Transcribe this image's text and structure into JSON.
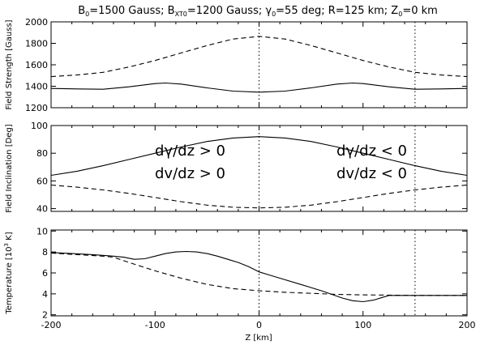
{
  "chart_data": [
    {
      "type": "line",
      "title": "",
      "xlabel": "",
      "ylabel": "Field Strength [Gauss]",
      "xlim": [
        -200,
        200
      ],
      "ylim": [
        1200,
        2000
      ],
      "yticks": [
        1200,
        1400,
        1600,
        1800,
        2000
      ],
      "grid": false,
      "reference_x": [
        0,
        150
      ],
      "series": [
        {
          "style": "solid",
          "x": [
            -200,
            -175,
            -150,
            -125,
            -100,
            -90,
            -75,
            -50,
            -25,
            0,
            25,
            50,
            75,
            90,
            100,
            125,
            150,
            175,
            200
          ],
          "y": [
            1380,
            1375,
            1372,
            1395,
            1425,
            1430,
            1420,
            1385,
            1355,
            1345,
            1355,
            1385,
            1420,
            1430,
            1425,
            1395,
            1372,
            1375,
            1380
          ]
        },
        {
          "style": "dashed",
          "x": [
            -200,
            -175,
            -150,
            -125,
            -100,
            -75,
            -50,
            -25,
            0,
            25,
            50,
            75,
            100,
            125,
            150,
            175,
            200
          ],
          "y": [
            1490,
            1505,
            1530,
            1580,
            1640,
            1710,
            1780,
            1840,
            1865,
            1840,
            1780,
            1710,
            1640,
            1580,
            1530,
            1505,
            1490
          ]
        }
      ]
    },
    {
      "type": "line",
      "title": "",
      "xlabel": "",
      "ylabel": "Field Inclination [Deg]",
      "xlim": [
        -200,
        200
      ],
      "ylim": [
        38,
        100
      ],
      "yticks": [
        40,
        60,
        80,
        100
      ],
      "grid": false,
      "reference_x": [
        0,
        150
      ],
      "series": [
        {
          "style": "solid",
          "x": [
            -200,
            -175,
            -150,
            -125,
            -100,
            -75,
            -50,
            -25,
            0,
            25,
            50,
            75,
            100,
            125,
            150,
            175,
            200
          ],
          "y": [
            64,
            67,
            71,
            75.5,
            80,
            84.5,
            88.5,
            91,
            92,
            91,
            88.5,
            84.5,
            80,
            75.5,
            71,
            67,
            64
          ]
        },
        {
          "style": "dashed",
          "x": [
            -200,
            -175,
            -150,
            -125,
            -100,
            -75,
            -50,
            -25,
            0,
            25,
            50,
            75,
            100,
            125,
            150,
            175,
            200
          ],
          "y": [
            57,
            55.5,
            53.5,
            51,
            48,
            45,
            42.5,
            41,
            40.5,
            41,
            42.5,
            45,
            48,
            51,
            53.5,
            55.5,
            57
          ]
        }
      ]
    },
    {
      "type": "line",
      "title": "",
      "xlabel": "Z [km]",
      "ylabel": "Temperature [10³ K]",
      "xlim": [
        -200,
        200
      ],
      "ylim": [
        1.9,
        10.1
      ],
      "yticks": [
        2,
        4,
        6,
        8,
        10
      ],
      "xticks": [
        -200,
        -100,
        0,
        100,
        200
      ],
      "grid": false,
      "reference_x": [
        0,
        150
      ],
      "series": [
        {
          "style": "solid",
          "x": [
            -200,
            -180,
            -160,
            -140,
            -130,
            -120,
            -110,
            -100,
            -90,
            -80,
            -70,
            -60,
            -50,
            -40,
            -30,
            -20,
            -10,
            0,
            10,
            20,
            40,
            60,
            80,
            90,
            100,
            110,
            120,
            125,
            130,
            150,
            175,
            200
          ],
          "y": [
            7.95,
            7.85,
            7.75,
            7.6,
            7.5,
            7.3,
            7.35,
            7.6,
            7.85,
            8.0,
            8.05,
            8.0,
            7.85,
            7.6,
            7.3,
            7.0,
            6.6,
            6.1,
            5.8,
            5.5,
            4.9,
            4.3,
            3.6,
            3.35,
            3.25,
            3.4,
            3.7,
            3.85,
            3.85,
            3.85,
            3.85,
            3.85
          ]
        },
        {
          "style": "dashed",
          "x": [
            -200,
            -175,
            -150,
            -140,
            -125,
            -100,
            -75,
            -50,
            -25,
            0,
            25,
            50,
            75,
            100,
            125,
            150,
            175,
            200
          ],
          "y": [
            7.9,
            7.75,
            7.6,
            7.5,
            7.0,
            6.2,
            5.5,
            4.9,
            4.5,
            4.3,
            4.15,
            4.05,
            3.95,
            3.9,
            3.88,
            3.85,
            3.85,
            3.85
          ]
        }
      ]
    }
  ],
  "figure": {
    "title_parts": {
      "b0": "B",
      "b0_sub": "0",
      "b0_val": "=1500 Gauss; B",
      "bxt_sub": "XT0",
      "bxt_val": "=1200 Gauss; ",
      "gamma": "γ",
      "gamma_sub": "0",
      "gamma_val": "=55 deg; R=125 km; Z",
      "z_sub": "0",
      "z_val": "=0 km"
    },
    "annotations": {
      "left_1": "dγ/dz > 0",
      "left_2": "dv/dz > 0",
      "right_1": "dγ/dz < 0",
      "right_2": "dv/dz < 0"
    },
    "ylabel_temp_parts": {
      "prefix": "Temperature [10",
      "sup": "3",
      "suffix": " K]"
    }
  }
}
